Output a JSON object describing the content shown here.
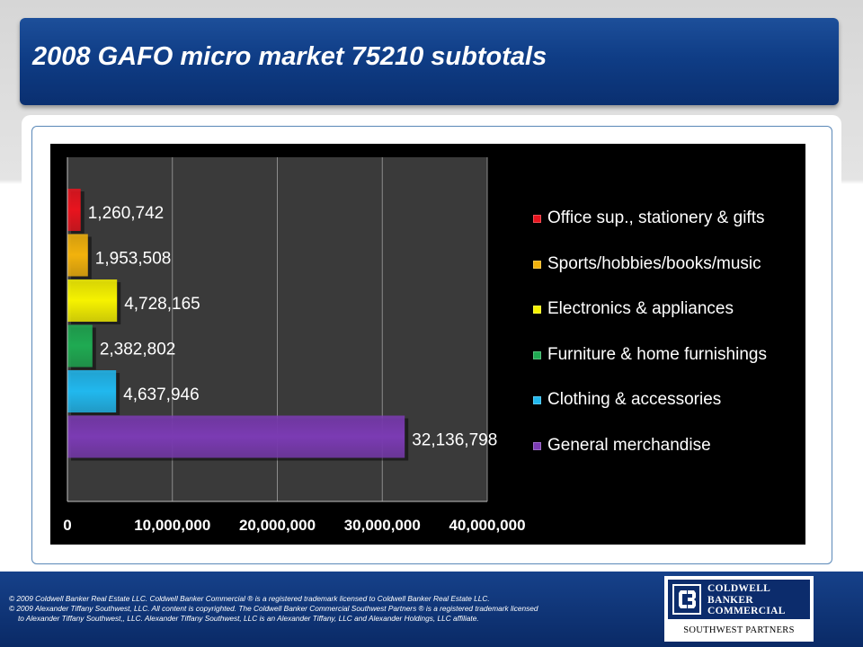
{
  "slide": {
    "title": "2008 GAFO micro market 75210 subtotals"
  },
  "chart_data": {
    "type": "bar",
    "orientation": "horizontal",
    "categories": [
      "Office sup., stationery & gifts",
      "Sports/hobbies/books/music",
      "Electronics & appliances",
      "Furniture & home furnishings",
      "Clothing & accessories",
      "General merchandise"
    ],
    "values": [
      1260742,
      1953508,
      4728165,
      2382802,
      4637946,
      32136798
    ],
    "value_labels": [
      "1,260,742",
      "1,953,508",
      "4,728,165",
      "2,382,802",
      "4,637,946",
      "32,136,798"
    ],
    "colors": [
      "#e8141e",
      "#f2b20c",
      "#f6f200",
      "#1faa52",
      "#21b8ee",
      "#7b3bb3"
    ],
    "xlim": [
      0,
      40000000
    ],
    "x_ticks": [
      0,
      10000000,
      20000000,
      30000000,
      40000000
    ],
    "x_tick_labels": [
      "0",
      "10,000,000",
      "20,000,000",
      "30,000,000",
      "40,000,000"
    ],
    "grid": true,
    "legend_position": "right",
    "title": "",
    "xlabel": "",
    "ylabel": ""
  },
  "footer": {
    "line1": "©  2009 Coldwell Banker Real Estate LLC. Coldwell Banker Commercial ® is a registered trademark licensed to Coldwell Banker Real Estate LLC.",
    "line2": "© 2009 Alexander Tiffany Southwest, LLC. All content is copyrighted. The Coldwell Banker Commercial Southwest Partners ® is a registered trademark licensed",
    "line3": "to Alexander Tiffany Southwest,, LLC.  Alexander Tiffany Southwest, LLC is an Alexander Tiffany, LLC and Alexander Holdings, LLC affiliate."
  },
  "logo": {
    "line1": "COLDWELL",
    "line2": "BANKER",
    "line3": "COMMERCIAL",
    "subtitle": "SOUTHWEST PARTNERS",
    "mark_icon": "coldwell-banker-mark-icon"
  }
}
